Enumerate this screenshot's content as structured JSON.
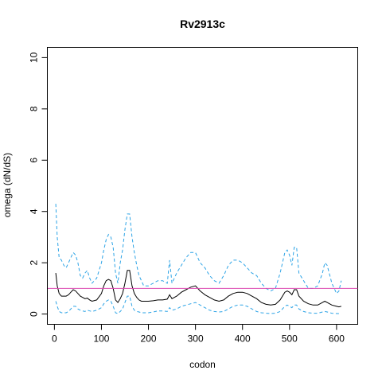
{
  "chart_data": {
    "type": "line",
    "title": "Rv2913c",
    "xlabel": "codon",
    "ylabel": "omega (dN/dS)",
    "xlim": [
      -15,
      645
    ],
    "ylim": [
      -0.4,
      10.4
    ],
    "x_ticks": [
      0,
      100,
      200,
      300,
      400,
      500,
      600
    ],
    "y_ticks": [
      0,
      2,
      4,
      6,
      8,
      10
    ],
    "grid": false,
    "legend": "none",
    "reference_line": {
      "y": 1,
      "color": "#dd4bb2"
    },
    "series": [
      {
        "role": "upper",
        "style": "dashed",
        "color": "#2ba3e6",
        "x": [
          3,
          6,
          10,
          15,
          20,
          25,
          30,
          35,
          40,
          45,
          50,
          55,
          60,
          65,
          70,
          75,
          80,
          90,
          100,
          105,
          110,
          115,
          120,
          125,
          130,
          135,
          140,
          145,
          150,
          155,
          160,
          165,
          170,
          175,
          180,
          185,
          190,
          200,
          210,
          220,
          230,
          240,
          245,
          250,
          260,
          270,
          280,
          290,
          300,
          310,
          320,
          330,
          340,
          350,
          360,
          370,
          380,
          390,
          400,
          410,
          420,
          430,
          440,
          450,
          460,
          470,
          480,
          490,
          495,
          500,
          505,
          510,
          515,
          520,
          530,
          540,
          550,
          560,
          570,
          575,
          580,
          590,
          600,
          605,
          610
        ],
        "values": [
          4.3,
          3.0,
          2.2,
          2.1,
          1.9,
          1.8,
          2.0,
          2.2,
          2.4,
          2.3,
          2.0,
          1.5,
          1.4,
          1.6,
          1.7,
          1.4,
          1.2,
          1.4,
          2.0,
          2.5,
          2.9,
          3.1,
          3.0,
          2.6,
          1.6,
          1.2,
          2.0,
          2.5,
          3.3,
          3.9,
          3.9,
          3.0,
          2.4,
          1.9,
          1.5,
          1.3,
          1.1,
          1.1,
          1.2,
          1.3,
          1.3,
          1.2,
          2.1,
          1.2,
          1.6,
          1.9,
          2.2,
          2.4,
          2.4,
          2.0,
          1.8,
          1.5,
          1.3,
          1.2,
          1.5,
          1.9,
          2.1,
          2.1,
          2.0,
          1.8,
          1.6,
          1.5,
          1.2,
          1.0,
          0.9,
          1.0,
          1.6,
          2.4,
          2.5,
          2.3,
          1.9,
          2.6,
          2.6,
          1.6,
          1.3,
          1.0,
          1.0,
          1.1,
          1.6,
          2.0,
          1.9,
          1.2,
          0.8,
          0.9,
          1.3
        ]
      },
      {
        "role": "estimate",
        "style": "solid",
        "color": "#000000",
        "x": [
          3,
          6,
          10,
          15,
          20,
          25,
          30,
          35,
          40,
          45,
          50,
          55,
          60,
          65,
          70,
          75,
          80,
          90,
          100,
          105,
          110,
          115,
          120,
          125,
          130,
          135,
          140,
          145,
          150,
          155,
          160,
          165,
          170,
          175,
          180,
          185,
          190,
          200,
          210,
          220,
          230,
          240,
          245,
          250,
          260,
          270,
          280,
          290,
          300,
          310,
          320,
          330,
          340,
          350,
          360,
          370,
          380,
          390,
          400,
          410,
          420,
          430,
          440,
          450,
          460,
          470,
          480,
          490,
          495,
          500,
          505,
          510,
          515,
          520,
          530,
          540,
          550,
          560,
          570,
          575,
          580,
          590,
          600,
          605,
          610
        ],
        "values": [
          1.6,
          1.1,
          0.8,
          0.7,
          0.7,
          0.7,
          0.75,
          0.85,
          0.95,
          0.9,
          0.8,
          0.7,
          0.65,
          0.6,
          0.62,
          0.55,
          0.5,
          0.55,
          0.8,
          1.1,
          1.3,
          1.35,
          1.3,
          1.0,
          0.55,
          0.45,
          0.6,
          0.8,
          1.2,
          1.7,
          1.7,
          1.1,
          0.8,
          0.65,
          0.55,
          0.5,
          0.5,
          0.5,
          0.52,
          0.55,
          0.55,
          0.58,
          0.75,
          0.6,
          0.7,
          0.85,
          0.95,
          1.05,
          1.1,
          0.9,
          0.75,
          0.65,
          0.55,
          0.5,
          0.55,
          0.7,
          0.8,
          0.85,
          0.85,
          0.8,
          0.7,
          0.6,
          0.45,
          0.38,
          0.35,
          0.38,
          0.55,
          0.85,
          0.9,
          0.85,
          0.75,
          0.95,
          0.95,
          0.7,
          0.5,
          0.4,
          0.35,
          0.35,
          0.45,
          0.5,
          0.45,
          0.35,
          0.3,
          0.28,
          0.3
        ]
      },
      {
        "role": "lower",
        "style": "dashed",
        "color": "#2ba3e6",
        "x": [
          3,
          6,
          10,
          15,
          20,
          25,
          30,
          35,
          40,
          45,
          50,
          55,
          60,
          65,
          70,
          75,
          80,
          90,
          100,
          105,
          110,
          115,
          120,
          125,
          130,
          135,
          140,
          145,
          150,
          155,
          160,
          165,
          170,
          175,
          180,
          185,
          190,
          200,
          210,
          220,
          230,
          240,
          245,
          250,
          260,
          270,
          280,
          290,
          300,
          310,
          320,
          330,
          340,
          350,
          360,
          370,
          380,
          390,
          400,
          410,
          420,
          430,
          440,
          450,
          460,
          470,
          480,
          490,
          495,
          500,
          505,
          510,
          515,
          520,
          530,
          540,
          550,
          560,
          570,
          575,
          580,
          590,
          600,
          605,
          610
        ],
        "values": [
          0.5,
          0.3,
          0.1,
          0.05,
          0.05,
          0.05,
          0.1,
          0.2,
          0.3,
          0.3,
          0.2,
          0.15,
          0.12,
          0.1,
          0.15,
          0.12,
          0.1,
          0.15,
          0.25,
          0.4,
          0.5,
          0.55,
          0.5,
          0.3,
          0.05,
          0.02,
          0.1,
          0.2,
          0.45,
          0.7,
          0.7,
          0.3,
          0.15,
          0.1,
          0.08,
          0.05,
          0.05,
          0.05,
          0.08,
          0.12,
          0.12,
          0.1,
          0.25,
          0.15,
          0.2,
          0.3,
          0.35,
          0.4,
          0.45,
          0.35,
          0.25,
          0.15,
          0.1,
          0.08,
          0.1,
          0.2,
          0.3,
          0.35,
          0.35,
          0.3,
          0.2,
          0.1,
          0.05,
          0.03,
          0.02,
          0.03,
          0.1,
          0.3,
          0.35,
          0.3,
          0.25,
          0.35,
          0.35,
          0.2,
          0.1,
          0.05,
          0.03,
          0.03,
          0.08,
          0.1,
          0.08,
          0.03,
          0.02,
          0.02,
          0.03
        ]
      }
    ]
  }
}
